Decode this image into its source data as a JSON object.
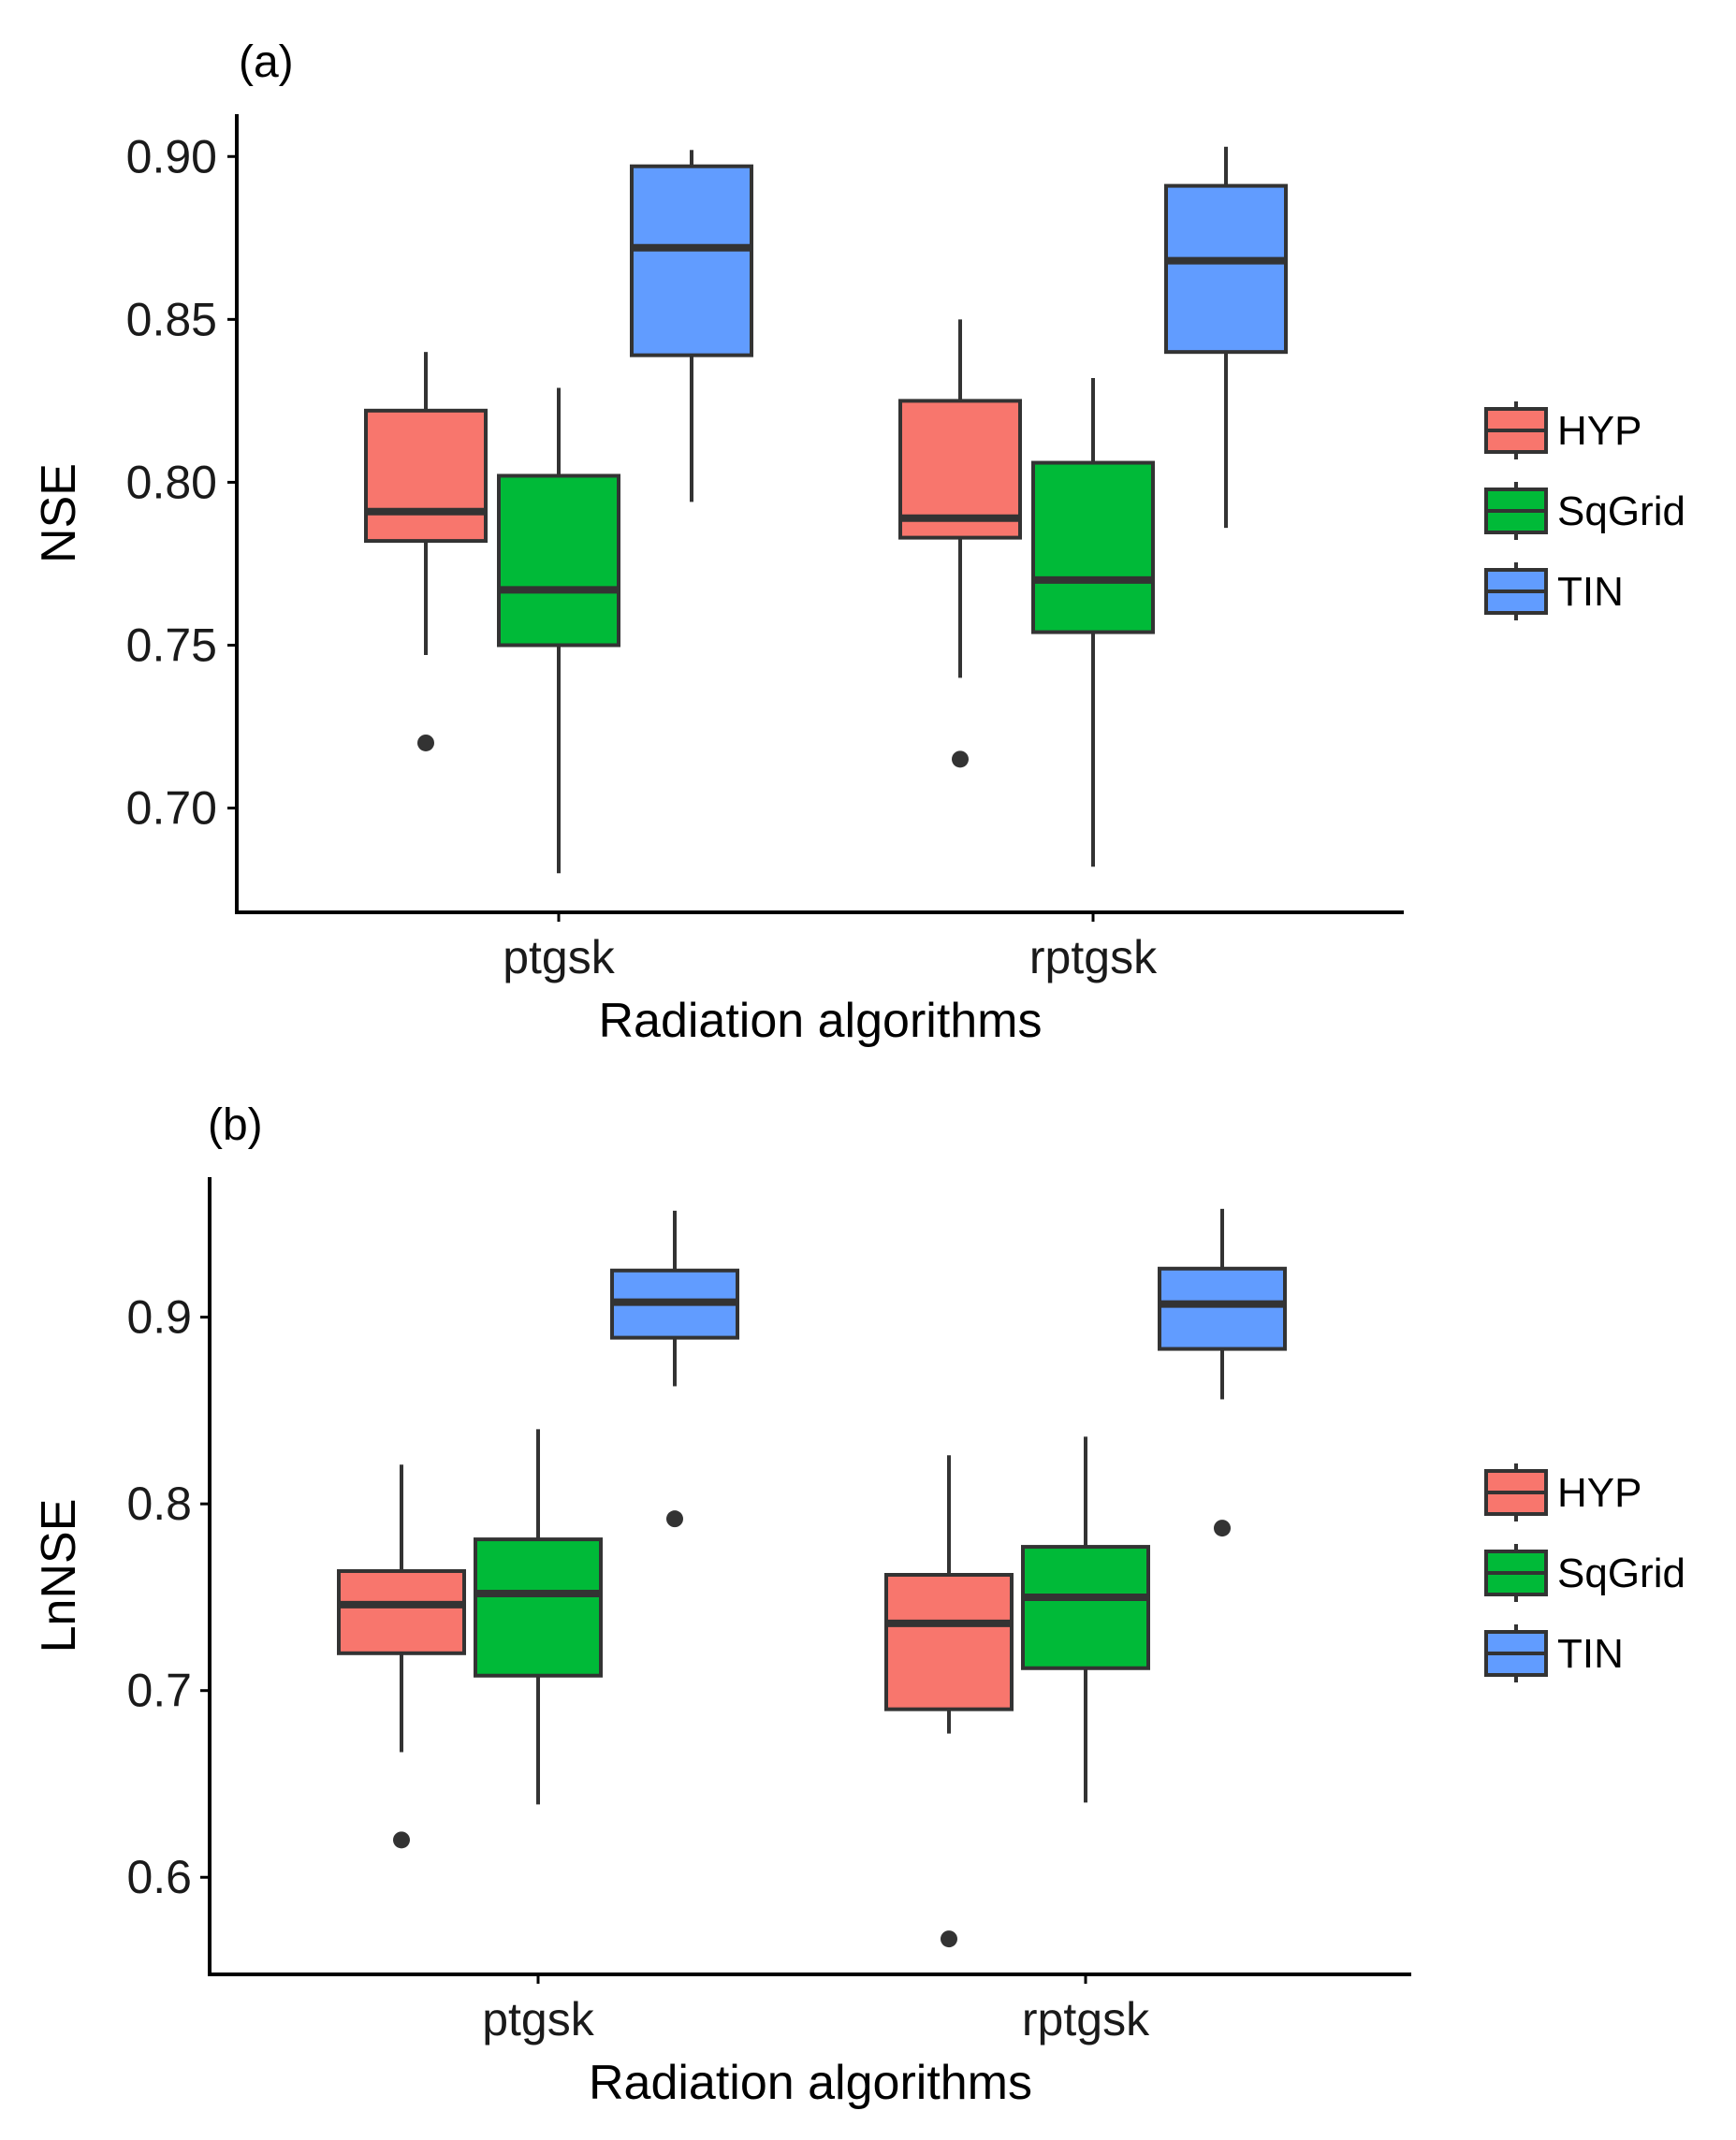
{
  "legend": [
    {
      "name": "HYP",
      "color": "#F8766D"
    },
    {
      "name": "SqGrid",
      "color": "#00BA38"
    },
    {
      "name": "TIN",
      "color": "#619CFF"
    }
  ],
  "chart_data": [
    {
      "type": "boxplot",
      "panel_label": "(a)",
      "xlabel": "Radiation algorithms",
      "ylabel": "NSE",
      "categories": [
        "ptgsk",
        "rptgsk"
      ],
      "ylim": [
        0.668,
        0.913
      ],
      "yticks": [
        0.7,
        0.75,
        0.8,
        0.85,
        0.9
      ],
      "ytick_labels": [
        "0.70",
        "0.75",
        "0.80",
        "0.85",
        "0.90"
      ],
      "series": [
        {
          "name": "HYP",
          "boxes": [
            {
              "lower": 0.747,
              "q1": 0.782,
              "median": 0.791,
              "q3": 0.822,
              "upper": 0.84,
              "outliers": [
                0.72
              ]
            },
            {
              "lower": 0.74,
              "q1": 0.783,
              "median": 0.789,
              "q3": 0.825,
              "upper": 0.85,
              "outliers": [
                0.715
              ]
            }
          ]
        },
        {
          "name": "SqGrid",
          "boxes": [
            {
              "lower": 0.68,
              "q1": 0.75,
              "median": 0.767,
              "q3": 0.802,
              "upper": 0.829,
              "outliers": []
            },
            {
              "lower": 0.682,
              "q1": 0.754,
              "median": 0.77,
              "q3": 0.806,
              "upper": 0.832,
              "outliers": []
            }
          ]
        },
        {
          "name": "TIN",
          "boxes": [
            {
              "lower": 0.794,
              "q1": 0.839,
              "median": 0.872,
              "q3": 0.897,
              "upper": 0.902,
              "outliers": []
            },
            {
              "lower": 0.786,
              "q1": 0.84,
              "median": 0.868,
              "q3": 0.891,
              "upper": 0.903,
              "outliers": []
            }
          ]
        }
      ]
    },
    {
      "type": "boxplot",
      "panel_label": "(b)",
      "xlabel": "Radiation algorithms",
      "ylabel": "LnNSE",
      "categories": [
        "ptgsk",
        "rptgsk"
      ],
      "ylim": [
        0.548,
        0.975
      ],
      "yticks": [
        0.6,
        0.7,
        0.8,
        0.9
      ],
      "ytick_labels": [
        "0.6",
        "0.7",
        "0.8",
        "0.9"
      ],
      "series": [
        {
          "name": "HYP",
          "boxes": [
            {
              "lower": 0.667,
              "q1": 0.72,
              "median": 0.746,
              "q3": 0.764,
              "upper": 0.821,
              "outliers": [
                0.62
              ]
            },
            {
              "lower": 0.677,
              "q1": 0.69,
              "median": 0.736,
              "q3": 0.762,
              "upper": 0.826,
              "outliers": [
                0.567
              ]
            }
          ]
        },
        {
          "name": "SqGrid",
          "boxes": [
            {
              "lower": 0.639,
              "q1": 0.708,
              "median": 0.752,
              "q3": 0.781,
              "upper": 0.84,
              "outliers": []
            },
            {
              "lower": 0.64,
              "q1": 0.712,
              "median": 0.75,
              "q3": 0.777,
              "upper": 0.836,
              "outliers": []
            }
          ]
        },
        {
          "name": "TIN",
          "boxes": [
            {
              "lower": 0.863,
              "q1": 0.889,
              "median": 0.908,
              "q3": 0.925,
              "upper": 0.957,
              "outliers": [
                0.792
              ]
            },
            {
              "lower": 0.856,
              "q1": 0.883,
              "median": 0.907,
              "q3": 0.926,
              "upper": 0.958,
              "outliers": [
                0.787
              ]
            }
          ]
        }
      ]
    }
  ]
}
